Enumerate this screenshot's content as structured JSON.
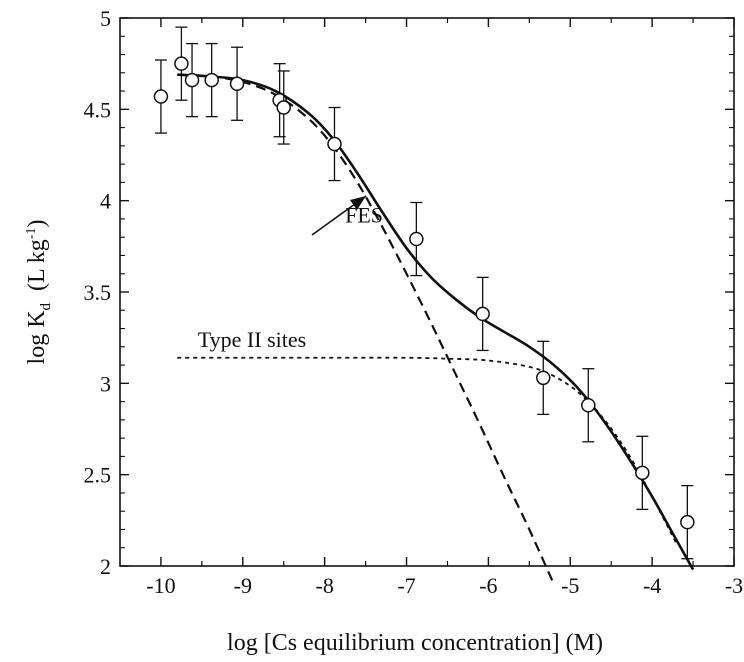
{
  "chart_data": {
    "type": "scatter",
    "title": "",
    "xlabel": "log [Cs equilibrium concentration] (M)",
    "ylabel": {
      "prefix": "log K",
      "sub": "d",
      "units_open": "  (L kg",
      "units_sup": "-1",
      "units_close": ")"
    },
    "xlim": [
      -10.5,
      -3
    ],
    "ylim": [
      2,
      5
    ],
    "x_ticks": [
      -10,
      -9,
      -8,
      -7,
      -6,
      -5,
      -4,
      -3
    ],
    "x_tick_labels": [
      "-10",
      "-9",
      "-8",
      "-7",
      "-6",
      "-5",
      "-4",
      "-3"
    ],
    "y_ticks": [
      2,
      2.5,
      3,
      3.5,
      4,
      4.5,
      5
    ],
    "y_tick_labels": [
      "2",
      "2.5",
      "3",
      "3.5",
      "4",
      "4.5",
      "5"
    ],
    "grid": false,
    "points": [
      {
        "x": -10.0,
        "y": 4.57,
        "err": 0.2
      },
      {
        "x": -9.75,
        "y": 4.75,
        "err": 0.2
      },
      {
        "x": -9.62,
        "y": 4.66,
        "err": 0.2
      },
      {
        "x": -9.38,
        "y": 4.66,
        "err": 0.2
      },
      {
        "x": -9.07,
        "y": 4.64,
        "err": 0.2
      },
      {
        "x": -8.55,
        "y": 4.55,
        "err": 0.2
      },
      {
        "x": -8.5,
        "y": 4.51,
        "err": 0.2
      },
      {
        "x": -7.88,
        "y": 4.31,
        "err": 0.2
      },
      {
        "x": -6.88,
        "y": 3.79,
        "err": 0.2
      },
      {
        "x": -6.07,
        "y": 3.38,
        "err": 0.2
      },
      {
        "x": -5.33,
        "y": 3.03,
        "err": 0.2
      },
      {
        "x": -4.78,
        "y": 2.88,
        "err": 0.2
      },
      {
        "x": -4.12,
        "y": 2.51,
        "err": 0.2
      },
      {
        "x": -3.57,
        "y": 2.24,
        "err": 0.2
      }
    ],
    "curves": [
      {
        "style": "solid",
        "x": [
          -9.8,
          -9.4,
          -9.0,
          -8.6,
          -8.2,
          -7.9,
          -7.6,
          -7.3,
          -7.0,
          -6.7,
          -6.4,
          -6.1,
          -5.8,
          -5.5,
          -5.2,
          -4.9,
          -4.6,
          -4.3,
          -4.0,
          -3.75,
          -3.5
        ],
        "y": [
          4.69,
          4.68,
          4.66,
          4.6,
          4.48,
          4.34,
          4.15,
          3.94,
          3.74,
          3.58,
          3.46,
          3.36,
          3.28,
          3.2,
          3.1,
          2.97,
          2.8,
          2.6,
          2.38,
          2.18,
          1.98
        ]
      },
      {
        "style": "dashed",
        "x": [
          -9.8,
          -9.4,
          -9.0,
          -8.6,
          -8.2,
          -7.9,
          -7.6,
          -7.3,
          -7.0,
          -6.7,
          -6.4,
          -6.1,
          -5.8,
          -5.5,
          -5.2
        ],
        "y": [
          4.69,
          4.68,
          4.65,
          4.58,
          4.45,
          4.3,
          4.1,
          3.86,
          3.6,
          3.33,
          3.05,
          2.77,
          2.48,
          2.2,
          1.9
        ]
      },
      {
        "style": "dotted",
        "x": [
          -9.8,
          -9.0,
          -8.0,
          -7.0,
          -6.5,
          -6.0,
          -5.5,
          -5.2,
          -4.9,
          -4.6,
          -4.3,
          -4.0,
          -3.7
        ],
        "y": [
          3.14,
          3.14,
          3.14,
          3.14,
          3.135,
          3.125,
          3.09,
          3.04,
          2.95,
          2.81,
          2.62,
          2.38,
          2.12
        ]
      }
    ],
    "annotations": [
      {
        "text": "FES",
        "x": -7.75,
        "y": 3.88
      },
      {
        "text": "Type II sites",
        "x": -9.55,
        "y": 3.2
      }
    ]
  }
}
